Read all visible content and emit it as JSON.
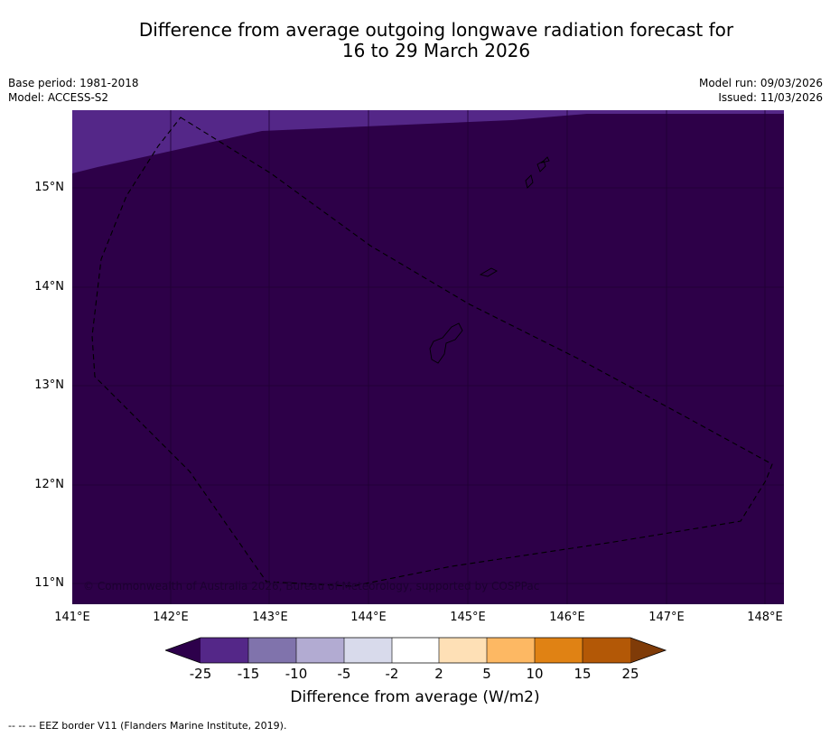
{
  "title": {
    "line1": "Difference from average outgoing longwave radiation forecast for",
    "line2": "16 to 29 March 2026"
  },
  "meta": {
    "base_period": "Base period: 1981-2018",
    "model": "Model: ACCESS-S2",
    "model_run": "Model run: 09/03/2026",
    "issued": "Issued: 11/03/2026"
  },
  "map": {
    "lat_labels": [
      "15°N",
      "14°N",
      "13°N",
      "12°N",
      "11°N"
    ],
    "lon_labels": [
      "141°E",
      "142°E",
      "143°E",
      "144°E",
      "145°E",
      "146°E",
      "147°E",
      "148°E"
    ],
    "copyright": "© Commonwealth of Australia 2026, Bureau of Meteorology, supported by COSPPac",
    "colors": {
      "deep": "#2d0048",
      "band": "#542788"
    }
  },
  "colorbar": {
    "ticks": [
      "-25",
      "-15",
      "-10",
      "-5",
      "-2",
      "2",
      "5",
      "10",
      "15",
      "25"
    ],
    "colors": [
      "#2d004b",
      "#542788",
      "#8073ac",
      "#b2abd2",
      "#d8daeb",
      "#ffffff",
      "#fee0b6",
      "#fdb863",
      "#e08214",
      "#b35806",
      "#7f3b08"
    ],
    "label": "Difference from average (W/m2)"
  },
  "footer": {
    "legend": "-- -- -- EEZ border V11 (Flanders Marine Institute, 2019)."
  }
}
